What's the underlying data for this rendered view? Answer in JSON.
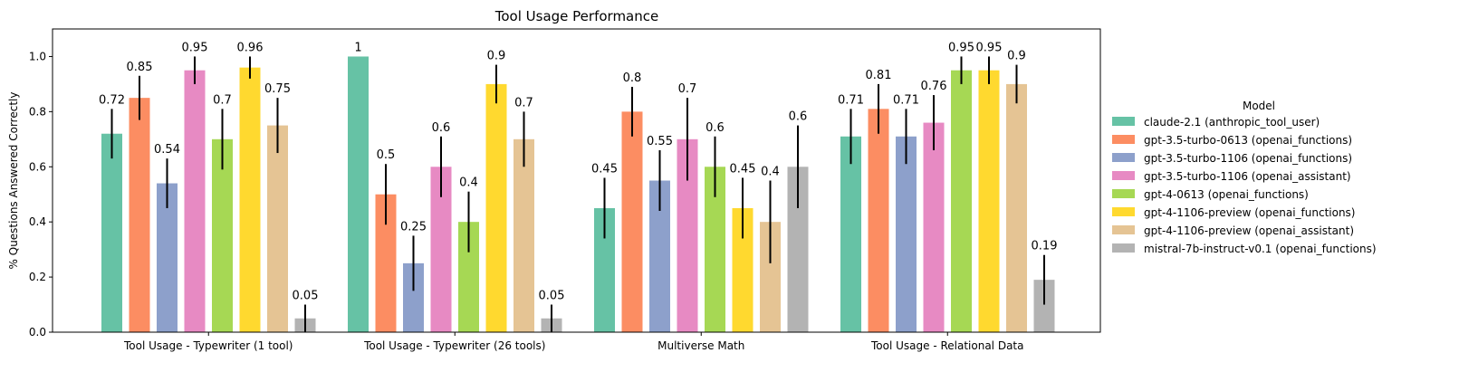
{
  "chart_data": {
    "type": "bar",
    "title": "Tool Usage Performance",
    "xlabel": "",
    "ylabel": "% Questions Answered Correctly",
    "ylim": [
      0,
      1.1
    ],
    "yticks": [
      "0.0",
      "0.2",
      "0.4",
      "0.6",
      "0.8",
      "1.0"
    ],
    "grid": false,
    "legend_title": "Model",
    "legend_position": "right, outside plot",
    "categories": [
      "Tool Usage - Typewriter (1 tool)",
      "Tool Usage - Typewriter (26 tools)",
      "Multiverse Math",
      "Tool Usage - Relational Data"
    ],
    "series": [
      {
        "name": "claude-2.1 (anthropic_tool_user)",
        "color": "#66c2a5",
        "values": [
          0.72,
          1.0,
          0.45,
          0.71
        ],
        "labels": [
          "0.72",
          "1",
          "0.45",
          "0.71"
        ],
        "errors": [
          0.09,
          0,
          0.11,
          0.1
        ]
      },
      {
        "name": "gpt-3.5-turbo-0613 (openai_functions)",
        "color": "#fc8d62",
        "values": [
          0.85,
          0.5,
          0.8,
          0.81
        ],
        "labels": [
          "0.85",
          "0.5",
          "0.8",
          "0.81"
        ],
        "errors": [
          0.08,
          0.11,
          0.09,
          0.09
        ]
      },
      {
        "name": "gpt-3.5-turbo-1106 (openai_functions)",
        "color": "#8da0cb",
        "values": [
          0.54,
          0.25,
          0.55,
          0.71
        ],
        "labels": [
          "0.54",
          "0.25",
          "0.55",
          "0.71"
        ],
        "errors": [
          0.09,
          0.1,
          0.11,
          0.1
        ]
      },
      {
        "name": "gpt-3.5-turbo-1106 (openai_assistant)",
        "color": "#e78ac3",
        "values": [
          0.95,
          0.6,
          0.7,
          0.76
        ],
        "labels": [
          "0.95",
          "0.6",
          "0.7",
          "0.76"
        ],
        "errors": [
          0.05,
          0.11,
          0.15,
          0.1
        ]
      },
      {
        "name": "gpt-4-0613 (openai_functions)",
        "color": "#a6d854",
        "values": [
          0.7,
          0.4,
          0.6,
          0.95
        ],
        "labels": [
          "0.7",
          "0.4",
          "0.6",
          "0.95"
        ],
        "errors": [
          0.11,
          0.11,
          0.11,
          0.05
        ]
      },
      {
        "name": "gpt-4-1106-preview (openai_functions)",
        "color": "#ffd92f",
        "values": [
          0.96,
          0.9,
          0.45,
          0.95
        ],
        "labels": [
          "0.96",
          "0.9",
          "0.45",
          "0.95"
        ],
        "errors": [
          0.04,
          0.07,
          0.11,
          0.05
        ]
      },
      {
        "name": "gpt-4-1106-preview (openai_assistant)",
        "color": "#e5c494",
        "values": [
          0.75,
          0.7,
          0.4,
          0.9
        ],
        "labels": [
          "0.75",
          "0.7",
          "0.4",
          "0.9"
        ],
        "errors": [
          0.1,
          0.1,
          0.15,
          0.07
        ]
      },
      {
        "name": "mistral-7b-instruct-v0.1 (openai_functions)",
        "color": "#b3b3b3",
        "values": [
          0.05,
          0.05,
          0.6,
          0.19
        ],
        "labels": [
          "0.05",
          "0.05",
          "0.6",
          "0.19"
        ],
        "errors": [
          0.05,
          0.05,
          0.15,
          0.09
        ]
      }
    ]
  }
}
